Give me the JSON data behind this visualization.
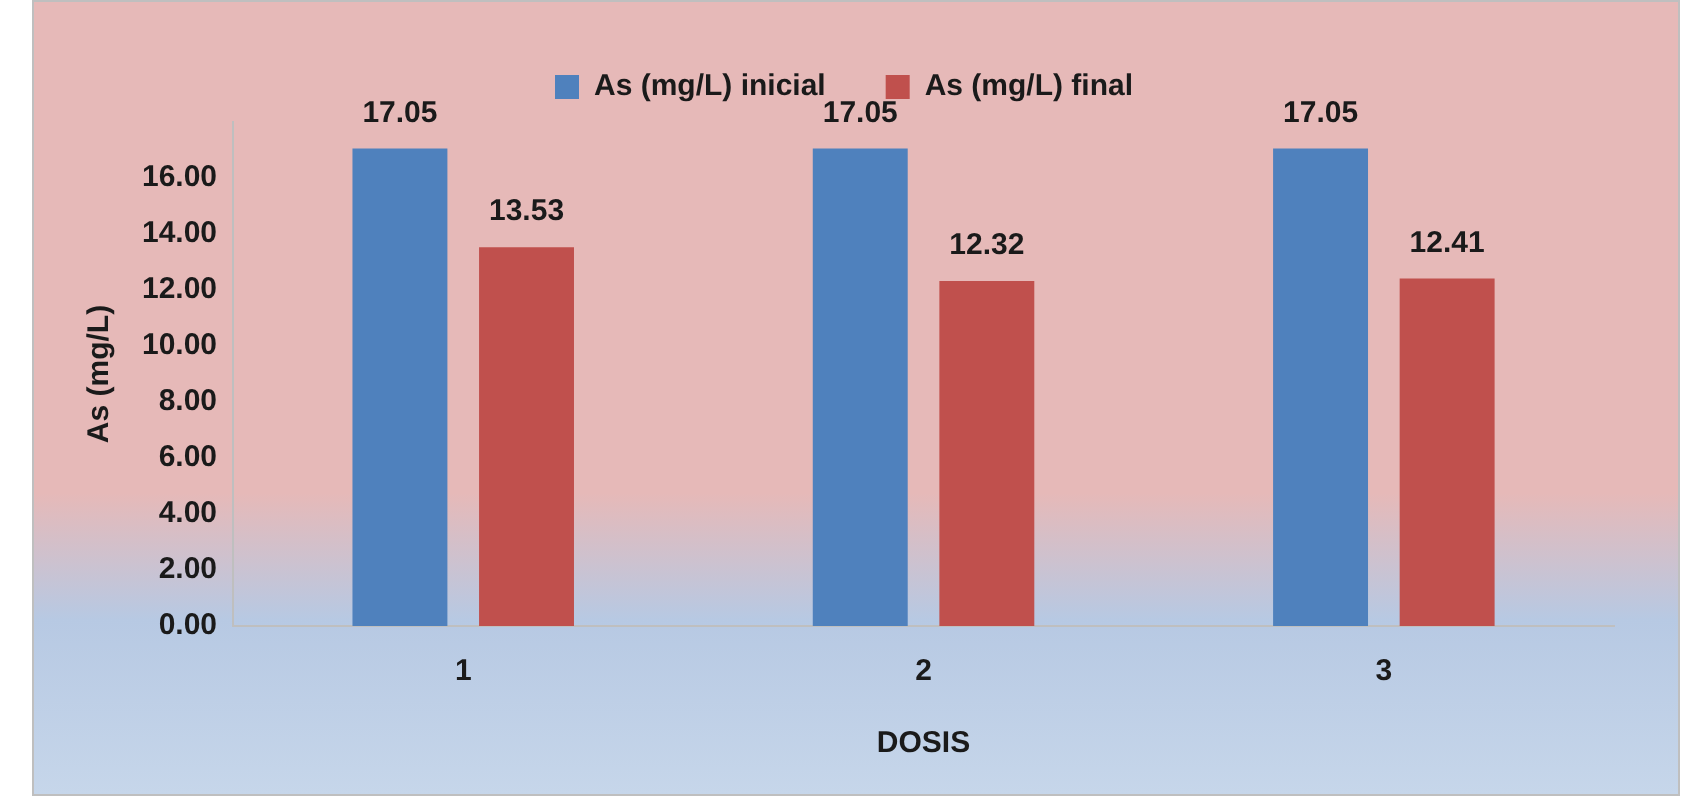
{
  "chart_data": {
    "type": "bar",
    "xlabel": "DOSIS",
    "ylabel": "As (mg/L)",
    "categories": [
      "1",
      "2",
      "3"
    ],
    "series": [
      {
        "name": "As (mg/L) inicial",
        "color": "#4f81bd",
        "values": [
          17.05,
          17.05,
          17.05
        ]
      },
      {
        "name": "As (mg/L) final",
        "color": "#c0504d",
        "values": [
          13.53,
          12.32,
          12.41
        ]
      }
    ],
    "ylim": [
      0,
      18
    ],
    "yticks": [
      {
        "value": 0,
        "label": "0.00"
      },
      {
        "value": 2,
        "label": "2.00"
      },
      {
        "value": 4,
        "label": "4.00"
      },
      {
        "value": 6,
        "label": "6.00"
      },
      {
        "value": 8,
        "label": "8.00"
      },
      {
        "value": 10,
        "label": "10.00"
      },
      {
        "value": 12,
        "label": "12.00"
      },
      {
        "value": 14,
        "label": "14.00"
      },
      {
        "value": 16,
        "label": "16.00"
      }
    ],
    "grid": false,
    "legend": "top",
    "data_labels": true
  }
}
